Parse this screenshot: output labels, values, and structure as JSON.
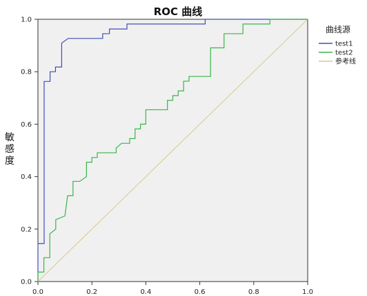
{
  "chart_data": {
    "type": "line",
    "title": "ROC 曲线",
    "xlabel": "",
    "ylabel": "敏感度",
    "xlim": [
      0,
      1
    ],
    "ylim": [
      0,
      1
    ],
    "x_ticks": [
      "0.0",
      "0.2",
      "0.4",
      "0.6",
      "0.8",
      "1.0"
    ],
    "y_ticks": [
      "0.0",
      "0.2",
      "0.4",
      "0.6",
      "0.8",
      "1.0"
    ],
    "grid": false,
    "plot_background": "#f0f0f0",
    "legend": {
      "title": "曲线源",
      "placement": "right"
    },
    "series": [
      {
        "name": "test1",
        "color": "#3c4fb5",
        "points": [
          [
            0.0,
            0.0
          ],
          [
            0.0,
            0.145
          ],
          [
            0.023,
            0.145
          ],
          [
            0.023,
            0.763
          ],
          [
            0.045,
            0.763
          ],
          [
            0.045,
            0.8
          ],
          [
            0.065,
            0.8
          ],
          [
            0.065,
            0.818
          ],
          [
            0.088,
            0.818
          ],
          [
            0.088,
            0.909
          ],
          [
            0.112,
            0.927
          ],
          [
            0.24,
            0.927
          ],
          [
            0.24,
            0.945
          ],
          [
            0.265,
            0.945
          ],
          [
            0.265,
            0.963
          ],
          [
            0.33,
            0.963
          ],
          [
            0.33,
            0.982
          ],
          [
            0.62,
            0.982
          ],
          [
            0.62,
            1.0
          ],
          [
            1.0,
            1.0
          ]
        ]
      },
      {
        "name": "test2",
        "color": "#39b54a",
        "points": [
          [
            0.0,
            0.0
          ],
          [
            0.0,
            0.036
          ],
          [
            0.022,
            0.036
          ],
          [
            0.022,
            0.091
          ],
          [
            0.044,
            0.091
          ],
          [
            0.044,
            0.182
          ],
          [
            0.066,
            0.2
          ],
          [
            0.066,
            0.236
          ],
          [
            0.1,
            0.25
          ],
          [
            0.11,
            0.327
          ],
          [
            0.13,
            0.327
          ],
          [
            0.13,
            0.382
          ],
          [
            0.155,
            0.382
          ],
          [
            0.18,
            0.4
          ],
          [
            0.18,
            0.455
          ],
          [
            0.2,
            0.455
          ],
          [
            0.2,
            0.473
          ],
          [
            0.22,
            0.473
          ],
          [
            0.22,
            0.491
          ],
          [
            0.29,
            0.491
          ],
          [
            0.29,
            0.509
          ],
          [
            0.31,
            0.527
          ],
          [
            0.34,
            0.527
          ],
          [
            0.34,
            0.545
          ],
          [
            0.36,
            0.545
          ],
          [
            0.36,
            0.582
          ],
          [
            0.38,
            0.582
          ],
          [
            0.38,
            0.6
          ],
          [
            0.4,
            0.6
          ],
          [
            0.4,
            0.655
          ],
          [
            0.48,
            0.655
          ],
          [
            0.48,
            0.691
          ],
          [
            0.5,
            0.691
          ],
          [
            0.5,
            0.709
          ],
          [
            0.52,
            0.709
          ],
          [
            0.52,
            0.727
          ],
          [
            0.54,
            0.727
          ],
          [
            0.54,
            0.764
          ],
          [
            0.56,
            0.764
          ],
          [
            0.56,
            0.782
          ],
          [
            0.64,
            0.782
          ],
          [
            0.64,
            0.891
          ],
          [
            0.69,
            0.891
          ],
          [
            0.69,
            0.945
          ],
          [
            0.76,
            0.945
          ],
          [
            0.76,
            0.982
          ],
          [
            0.86,
            0.982
          ],
          [
            0.86,
            1.0
          ],
          [
            1.0,
            1.0
          ]
        ]
      },
      {
        "name": "参考线",
        "color": "#d9c98a",
        "points": [
          [
            0,
            0
          ],
          [
            1,
            1
          ]
        ]
      }
    ]
  }
}
